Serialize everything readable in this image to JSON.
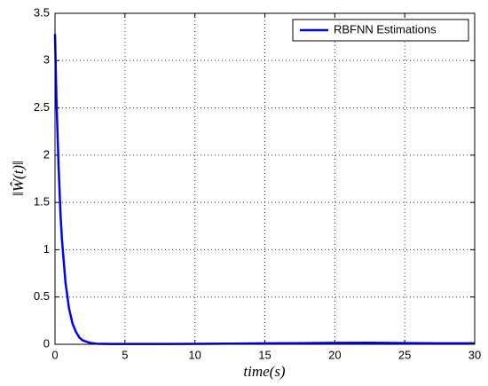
{
  "chart_data": {
    "type": "line",
    "x_label": "time(s)",
    "y_label": "‖Ŵ(t)‖",
    "x": [
      0,
      0.1,
      0.25,
      0.4,
      0.5,
      0.75,
      1,
      1.25,
      1.5,
      1.75,
      2,
      2.5,
      3,
      4,
      5,
      7.5,
      10,
      12.5,
      15,
      17.5,
      20,
      22.5,
      25,
      27.5,
      30
    ],
    "series": [
      {
        "name": "RBFNN Estimations",
        "color": "#0000ff",
        "values": [
          3.28,
          2.6,
          1.9,
          1.35,
          1.1,
          0.65,
          0.38,
          0.22,
          0.13,
          0.07,
          0.04,
          0.015,
          0.006,
          0.003,
          0.003,
          0.004,
          0.005,
          0.007,
          0.01,
          0.012,
          0.015,
          0.016,
          0.013,
          0.011,
          0.01
        ]
      }
    ],
    "xlim": [
      0,
      30
    ],
    "xticks": [
      0,
      5,
      10,
      15,
      20,
      25,
      30
    ],
    "ylim": [
      0,
      3.5
    ],
    "yticks": [
      0,
      0.5,
      1,
      1.5,
      2,
      2.5,
      3,
      3.5
    ],
    "grid": true,
    "legend": "upper right"
  }
}
